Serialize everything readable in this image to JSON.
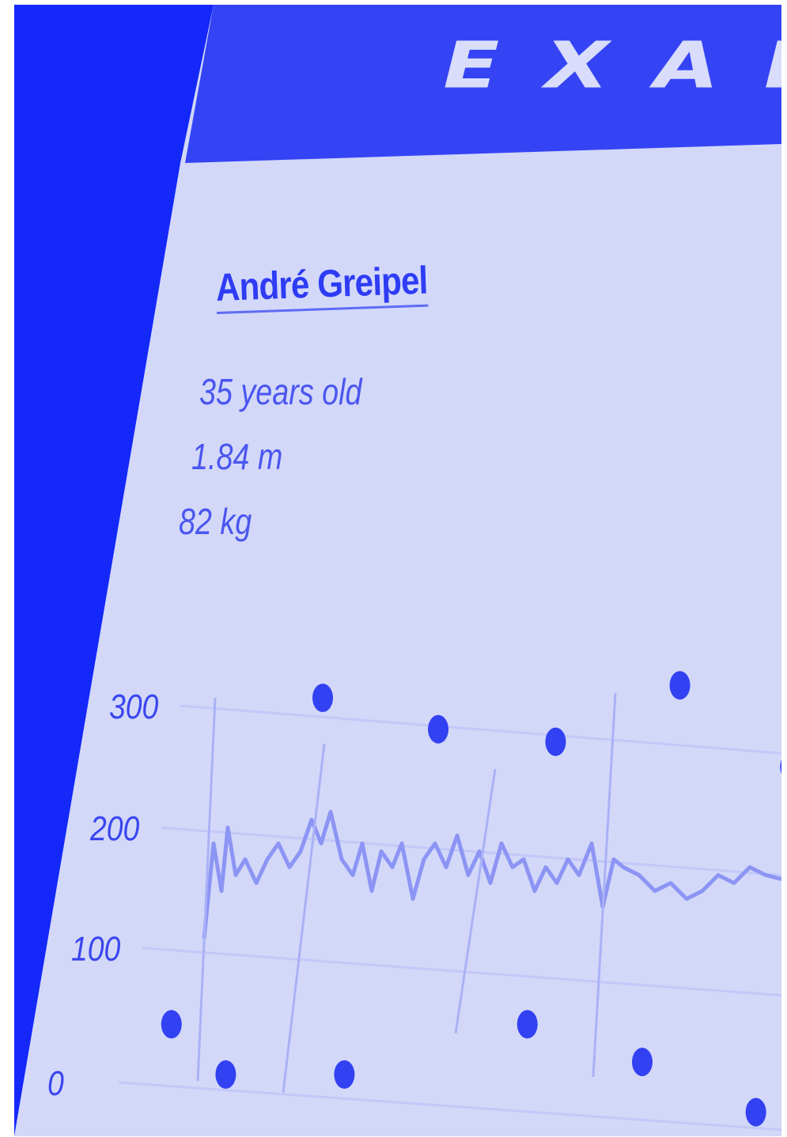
{
  "brand": {
    "logo_text": "EXAKT"
  },
  "rider": {
    "name": "André Greipel",
    "age": "35 years old",
    "height": "1.84 m",
    "weight": "82 kg"
  },
  "colors": {
    "accent": "#2a3af5",
    "panel": "#d3d8f9",
    "dot": "#3241f2",
    "trace": "#8c95f4"
  },
  "chart_data": {
    "type": "scatter",
    "y_ticks": [
      "0",
      "100",
      "200",
      "300"
    ],
    "ylim": [
      0,
      300
    ],
    "grid": true,
    "points": [
      {
        "x": 1,
        "y": 300
      },
      {
        "x": 2,
        "y": 275
      },
      {
        "x": 3,
        "y": 265
      },
      {
        "x": 4,
        "y": 310
      },
      {
        "x": 5,
        "y": 245
      },
      {
        "x": 0,
        "y": 40
      },
      {
        "x": 0.5,
        "y": 0
      },
      {
        "x": 1.5,
        "y": 0
      },
      {
        "x": 3,
        "y": 40
      },
      {
        "x": 4,
        "y": 10
      },
      {
        "x": 5,
        "y": -30
      }
    ]
  }
}
